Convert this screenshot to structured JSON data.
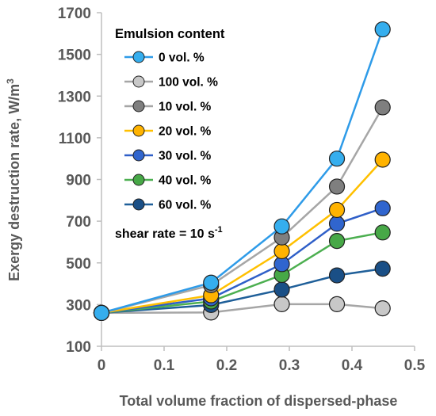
{
  "chart_data": {
    "type": "line",
    "xlabel": "Total volume fraction of dispersed-phase",
    "ylabel": "Exergy destruction rate, W/m",
    "ylabel_superscript": "3",
    "xlim": [
      0,
      0.5
    ],
    "ylim": [
      100,
      1700
    ],
    "x_ticks": [
      "0",
      "0.1",
      "0.2",
      "0.3",
      "0.4",
      "0.5"
    ],
    "y_ticks": [
      "100",
      "300",
      "500",
      "700",
      "900",
      "1100",
      "1300",
      "1500",
      "1700"
    ],
    "grid": false,
    "legend_title": "Emulsion content",
    "legend_position": "top-left",
    "annotation": {
      "text": "shear rate = 10 s",
      "superscript": "-1"
    },
    "series": [
      {
        "name": "0 vol. %",
        "line_color": "#2E9BE8",
        "marker_color": "#35AEEE",
        "x": [
          0,
          0.175,
          0.288,
          0.376,
          0.449
        ],
        "y": [
          260,
          405,
          675,
          1000,
          1620
        ]
      },
      {
        "name": "100 vol. %",
        "line_color": "#A6A6A6",
        "marker_color": "#C8C8C8",
        "x": [
          0,
          0.175,
          0.288,
          0.376,
          0.449
        ],
        "y": [
          260,
          262,
          302,
          302,
          282
        ]
      },
      {
        "name": "10 vol. %",
        "line_color": "#A6A6A6",
        "marker_color": "#7F7F7F",
        "x": [
          0,
          0.175,
          0.288,
          0.376,
          0.449
        ],
        "y": [
          260,
          393,
          622,
          866,
          1246
        ]
      },
      {
        "name": "20 vol. %",
        "line_color": "#FFC000",
        "marker_color": "#FFB300",
        "x": [
          0,
          0.175,
          0.288,
          0.376,
          0.449
        ],
        "y": [
          260,
          345,
          556,
          754,
          995
        ]
      },
      {
        "name": "30 vol. %",
        "line_color": "#2F5FC8",
        "marker_color": "#3065CE",
        "x": [
          0,
          0.175,
          0.288,
          0.376,
          0.449
        ],
        "y": [
          260,
          330,
          494,
          688,
          762
        ]
      },
      {
        "name": "40 vol. %",
        "line_color": "#4CAF50",
        "marker_color": "#47A847",
        "x": [
          0,
          0.175,
          0.288,
          0.376,
          0.449
        ],
        "y": [
          260,
          315,
          442,
          605,
          646
        ]
      },
      {
        "name": "60 vol. %",
        "line_color": "#1F5F99",
        "marker_color": "#1A4F86",
        "x": [
          0,
          0.175,
          0.288,
          0.376,
          0.449
        ],
        "y": [
          260,
          298,
          372,
          440,
          472
        ]
      }
    ]
  }
}
